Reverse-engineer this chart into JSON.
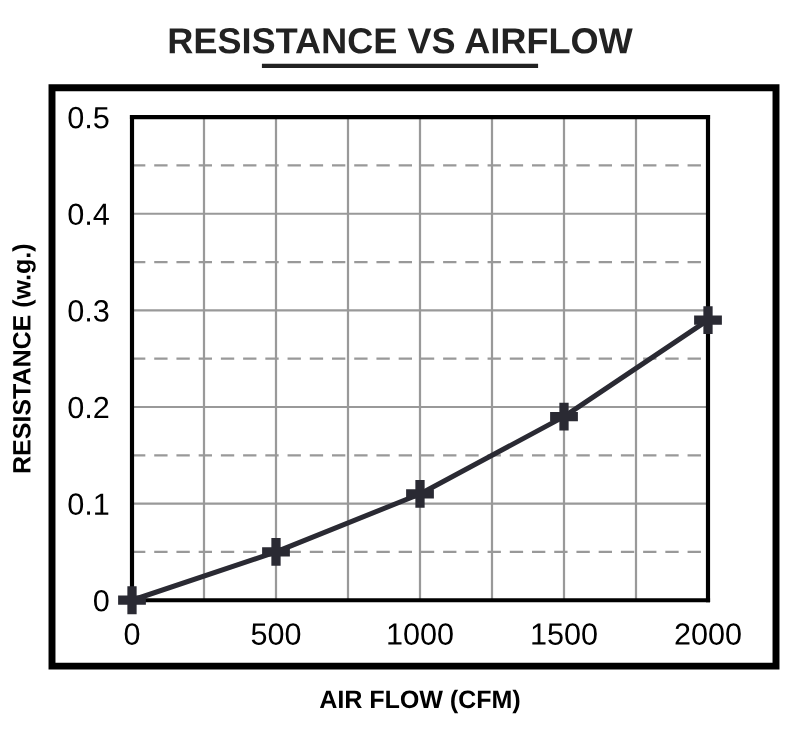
{
  "chart_data": {
    "type": "line",
    "title": "RESISTANCE VS AIRFLOW",
    "xlabel": "AIR FLOW (CFM)",
    "ylabel": "RESISTANCE (w.g.)",
    "x": [
      0,
      500,
      1000,
      1500,
      2000
    ],
    "series": [
      {
        "color": "#2a2a33",
        "values": [
          0,
          0.05,
          0.11,
          0.19,
          0.29
        ]
      }
    ],
    "marker": "cross",
    "line_style": "solid",
    "grid": true,
    "xlim": [
      0,
      2000
    ],
    "ylim": [
      0,
      0.5
    ],
    "xticks": [
      0,
      {
        "value": 250,
        "label": null
      },
      500,
      {
        "value": 750,
        "label": null
      },
      1000,
      {
        "value": 1250,
        "label": null
      },
      1500,
      {
        "value": 1750,
        "label": null
      },
      2000
    ],
    "yticks": [
      0,
      {
        "value": 0.05,
        "label": null
      },
      0.1,
      {
        "value": 0.15,
        "label": null
      },
      0.2,
      {
        "value": 0.25,
        "label": null
      },
      0.3,
      {
        "value": 0.35,
        "label": null
      },
      0.4,
      {
        "value": 0.45,
        "label": null
      },
      0.5
    ]
  }
}
